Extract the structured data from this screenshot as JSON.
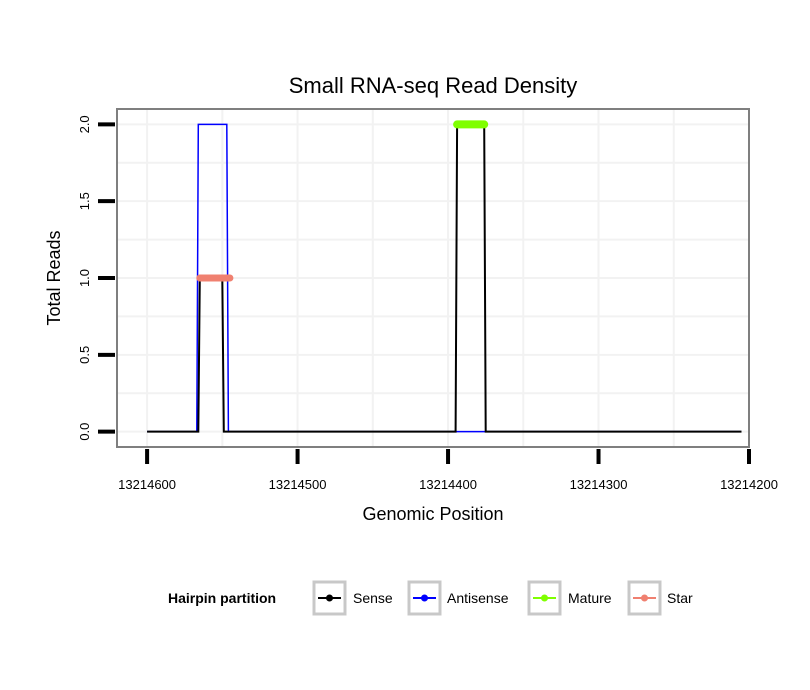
{
  "chart_data": {
    "type": "line",
    "title": "Small RNA-seq Read Density",
    "xlabel": "Genomic Position",
    "ylabel": "Total Reads",
    "x_reversed": true,
    "xlim": [
      13214620,
      13214200
    ],
    "ylim": [
      -0.1,
      2.1
    ],
    "x_ticks": [
      13214600,
      13214500,
      13214400,
      13214300,
      13214200
    ],
    "x_tick_labels": [
      "13214600",
      "13214500",
      "13214400",
      "13214300",
      "13214200"
    ],
    "y_ticks": [
      0,
      0.5,
      1,
      1.5,
      2
    ],
    "y_tick_labels": [
      "0.0",
      "0.5",
      "1.0",
      "1.5",
      "2.0"
    ],
    "grid": true,
    "legend": {
      "title": "Hairpin partition",
      "placement": "bottom",
      "entries": [
        {
          "label": "Sense",
          "color": "#000000"
        },
        {
          "label": "Antisense",
          "color": "#0000ff"
        },
        {
          "label": "Mature",
          "color": "#7fff00"
        },
        {
          "label": "Star",
          "color": "#f08070"
        }
      ]
    },
    "series": [
      {
        "name": "Antisense",
        "color": "#0000ff",
        "width": 1.5,
        "x": [
          13214600,
          13214567,
          13214566,
          13214547,
          13214546,
          13214395,
          13214394,
          13214384,
          13214383,
          13214205
        ],
        "values": [
          0,
          0,
          2,
          2,
          0,
          0,
          0,
          0,
          0,
          0
        ]
      },
      {
        "name": "Sense",
        "color": "#000000",
        "width": 2,
        "x": [
          13214600,
          13214566,
          13214565,
          13214550,
          13214549,
          13214395,
          13214394,
          13214376,
          13214375,
          13214205
        ],
        "values": [
          0,
          0,
          1,
          1,
          0,
          0,
          2,
          2,
          0,
          0
        ]
      },
      {
        "name": "Mature",
        "color": "#7fff00",
        "width": 8,
        "x": [
          13214394,
          13214376
        ],
        "values": [
          2,
          2
        ]
      },
      {
        "name": "Star",
        "color": "#f08070",
        "width": 7,
        "x": [
          13214565,
          13214545
        ],
        "values": [
          1,
          1
        ]
      }
    ]
  }
}
